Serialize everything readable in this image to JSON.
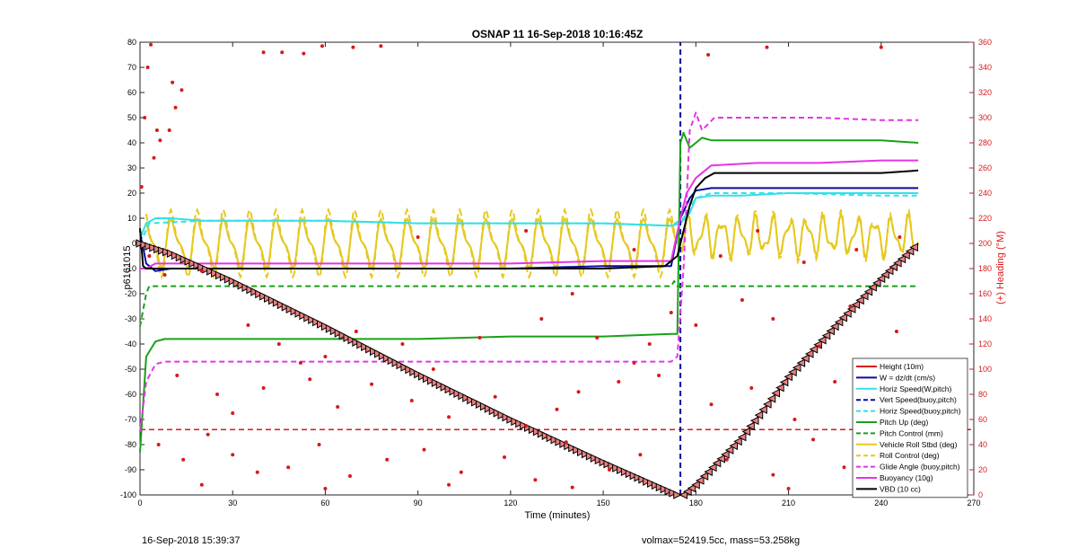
{
  "footer": {
    "left_text": "16-Sep-2018 15:39:37",
    "right_text": "volmax=52419.5cc, mass=53.258kg"
  },
  "chart_data": {
    "type": "line",
    "title": "OSNAP 11 16-Sep-2018 10:16:45Z",
    "xlabel": "Time (minutes)",
    "ylabel": "p6161015",
    "y2label": "(+) Heading (°M)",
    "xlim": [
      0,
      270
    ],
    "ylim": [
      -100,
      80
    ],
    "y2lim": [
      0,
      360
    ],
    "xticks": [
      0,
      30,
      60,
      90,
      120,
      150,
      180,
      210,
      240,
      270
    ],
    "yticks": [
      -100,
      -90,
      -80,
      -70,
      -60,
      -50,
      -40,
      -30,
      -20,
      -10,
      0,
      10,
      20,
      30,
      40,
      50,
      60,
      70,
      80
    ],
    "y2ticks": [
      0,
      20,
      40,
      60,
      80,
      100,
      120,
      140,
      160,
      180,
      200,
      220,
      240,
      260,
      280,
      300,
      320,
      340,
      360
    ],
    "grid": false,
    "legend_position": "bottom-right",
    "colors": {
      "height": "#d7191c",
      "w": "#0a0aa0",
      "horiz_speed": "#33e0e8",
      "pitch": "#1aa01a",
      "roll": "#e6c81e",
      "glide": "#e633e6",
      "buoyancy": "#e633e6",
      "vbd": "#000000",
      "heading": "#d7191c",
      "right_axis": "#d7191c"
    },
    "series": [
      {
        "name": "Height (10m)",
        "style": "solid",
        "marker": "triangle",
        "x": [
          0,
          10,
          30,
          60,
          90,
          120,
          150,
          174,
          176,
          180,
          195,
          210,
          225,
          240,
          252
        ],
        "y": [
          0,
          -4,
          -15,
          -33,
          -52,
          -70,
          -87,
          -100,
          -100,
          -96,
          -77,
          -53,
          -33,
          -14,
          0
        ]
      },
      {
        "name": "W = dz/dt (cm/s)",
        "style": "solid",
        "x": [
          0,
          2,
          5,
          10,
          20,
          40,
          60,
          90,
          120,
          150,
          172,
          175,
          178,
          180,
          185,
          195,
          210,
          225,
          240,
          252
        ],
        "y": [
          5,
          -8,
          -11,
          -10,
          -10,
          -10,
          -10,
          -10,
          -10,
          -9,
          -9,
          10,
          18,
          21,
          22,
          22,
          22,
          22,
          22,
          22
        ]
      },
      {
        "name": "Horiz Speed(W,pitch)",
        "style": "solid",
        "x": [
          0,
          2,
          5,
          10,
          20,
          40,
          60,
          90,
          120,
          150,
          172,
          175,
          178,
          180,
          185,
          195,
          210,
          225,
          240,
          252
        ],
        "y": [
          2,
          8,
          10,
          10,
          9,
          9,
          9,
          8,
          8,
          8,
          7,
          8,
          12,
          18,
          19,
          19,
          20,
          20,
          20,
          20
        ]
      },
      {
        "name": "Vert Speed(buoy,pitch)",
        "style": "dashed",
        "x": [
          175,
          175
        ],
        "y": [
          -100,
          80
        ]
      },
      {
        "name": "Horiz Speed(buoy,pitch)",
        "style": "dashed",
        "x": [
          0,
          3,
          20,
          60,
          90,
          120,
          150,
          172,
          176,
          180,
          185,
          210,
          240,
          252
        ],
        "y": [
          0,
          8,
          9,
          9,
          8,
          8,
          8,
          7,
          10,
          18,
          20,
          20,
          19,
          19
        ]
      },
      {
        "name": "Pitch Up (deg)",
        "style": "solid",
        "x": [
          0,
          2,
          5,
          8,
          20,
          40,
          60,
          90,
          120,
          150,
          172,
          174,
          175,
          176,
          178,
          182,
          185,
          200,
          220,
          240,
          252
        ],
        "y": [
          -83,
          -45,
          -39,
          -38,
          -38,
          -38,
          -38,
          -38,
          -37,
          -37,
          -36,
          -36,
          40,
          44,
          38,
          42,
          41,
          41,
          41,
          41,
          40
        ]
      },
      {
        "name": "Pitch Control (mm)",
        "style": "dashed",
        "x": [
          0,
          2,
          3,
          170,
          172,
          173,
          174,
          252
        ],
        "y": [
          -33,
          -20,
          -17,
          -17,
          -17,
          -15,
          -17,
          -17
        ]
      },
      {
        "name": "Vehicle Roll Stbd (deg)",
        "style": "solid",
        "x": [
          0,
          174,
          175,
          252
        ],
        "y": [
          0,
          0,
          5,
          0
        ]
      },
      {
        "name": "Roll Control (deg)",
        "style": "dashed",
        "x": [
          0,
          174,
          175,
          252
        ],
        "y": [
          0,
          0,
          0,
          0
        ]
      },
      {
        "name": "Glide Angle (buoy,pitch)",
        "style": "dashed",
        "x": [
          0,
          2,
          5,
          8,
          20,
          60,
          90,
          120,
          150,
          172,
          174,
          176,
          178,
          180,
          182,
          186,
          200,
          220,
          240,
          252
        ],
        "y": [
          -75,
          -55,
          -48,
          -47,
          -47,
          -47,
          -47,
          -47,
          -47,
          -47,
          -45,
          -10,
          45,
          52,
          45,
          50,
          50,
          50,
          49,
          49
        ]
      },
      {
        "name": "Buoyancy (10g)",
        "style": "solid",
        "x": [
          0,
          2,
          5,
          20,
          60,
          90,
          120,
          150,
          172,
          175,
          177,
          180,
          185,
          200,
          220,
          240,
          252
        ],
        "y": [
          -10,
          -10,
          -8,
          -8,
          -8,
          -8,
          -8,
          -7,
          -7,
          10,
          20,
          26,
          31,
          32,
          32,
          33,
          33
        ]
      },
      {
        "name": "VBD (10 cc)",
        "style": "solid",
        "x": [
          0,
          1,
          2,
          30,
          60,
          90,
          120,
          150,
          170,
          174,
          176,
          178,
          180,
          183,
          186,
          200,
          220,
          240,
          252
        ],
        "y": [
          6,
          -9,
          -10,
          -10,
          -10,
          -10,
          -10,
          -10,
          -9,
          -5,
          5,
          15,
          22,
          26,
          28,
          28,
          28,
          28,
          29
        ]
      }
    ],
    "heading_points": [
      [
        0.5,
        245
      ],
      [
        1.5,
        300
      ],
      [
        2.5,
        340
      ],
      [
        3.5,
        358
      ],
      [
        5.5,
        290
      ],
      [
        6.5,
        282
      ],
      [
        4.5,
        268
      ],
      [
        10.5,
        328
      ],
      [
        11.5,
        308
      ],
      [
        13.5,
        322
      ],
      [
        9.5,
        290
      ],
      [
        40,
        352
      ],
      [
        46,
        352
      ],
      [
        53,
        351
      ],
      [
        59,
        357
      ],
      [
        69,
        356
      ],
      [
        78,
        357
      ],
      [
        184,
        350
      ],
      [
        203,
        356
      ],
      [
        240,
        356
      ],
      [
        3,
        190
      ],
      [
        8,
        175
      ],
      [
        20,
        178
      ],
      [
        35,
        135
      ],
      [
        45,
        120
      ],
      [
        52,
        105
      ],
      [
        60,
        110
      ],
      [
        70,
        130
      ],
      [
        85,
        120
      ],
      [
        95,
        100
      ],
      [
        110,
        125
      ],
      [
        130,
        140
      ],
      [
        140,
        160
      ],
      [
        148,
        125
      ],
      [
        160,
        105
      ],
      [
        165,
        120
      ],
      [
        172,
        145
      ],
      [
        180,
        135
      ],
      [
        195,
        155
      ],
      [
        205,
        140
      ],
      [
        220,
        118
      ],
      [
        230,
        150
      ],
      [
        245,
        130
      ],
      [
        12,
        95
      ],
      [
        25,
        80
      ],
      [
        30,
        65
      ],
      [
        40,
        85
      ],
      [
        55,
        92
      ],
      [
        64,
        70
      ],
      [
        75,
        88
      ],
      [
        88,
        75
      ],
      [
        100,
        62
      ],
      [
        115,
        78
      ],
      [
        125,
        55
      ],
      [
        135,
        68
      ],
      [
        142,
        82
      ],
      [
        155,
        90
      ],
      [
        168,
        95
      ],
      [
        185,
        72
      ],
      [
        198,
        85
      ],
      [
        212,
        60
      ],
      [
        225,
        90
      ],
      [
        238,
        68
      ],
      [
        248,
        80
      ],
      [
        6,
        40
      ],
      [
        14,
        28
      ],
      [
        22,
        48
      ],
      [
        30,
        32
      ],
      [
        38,
        18
      ],
      [
        48,
        22
      ],
      [
        58,
        40
      ],
      [
        68,
        15
      ],
      [
        80,
        28
      ],
      [
        92,
        36
      ],
      [
        104,
        18
      ],
      [
        118,
        30
      ],
      [
        128,
        12
      ],
      [
        138,
        42
      ],
      [
        152,
        20
      ],
      [
        162,
        32
      ],
      [
        190,
        28
      ],
      [
        205,
        16
      ],
      [
        218,
        44
      ],
      [
        228,
        22
      ],
      [
        236,
        10
      ],
      [
        244,
        35
      ],
      [
        250,
        25
      ],
      [
        20,
        8
      ],
      [
        60,
        5
      ],
      [
        100,
        8
      ],
      [
        140,
        6
      ],
      [
        210,
        5
      ],
      [
        188,
        190
      ],
      [
        200,
        210
      ],
      [
        215,
        185
      ],
      [
        232,
        195
      ],
      [
        246,
        205
      ],
      [
        90,
        205
      ],
      [
        125,
        210
      ],
      [
        160,
        195
      ]
    ],
    "annotations": {
      "heading_reference_line": {
        "y2": 52,
        "style": "dashed",
        "color": "#d7191c"
      }
    }
  }
}
